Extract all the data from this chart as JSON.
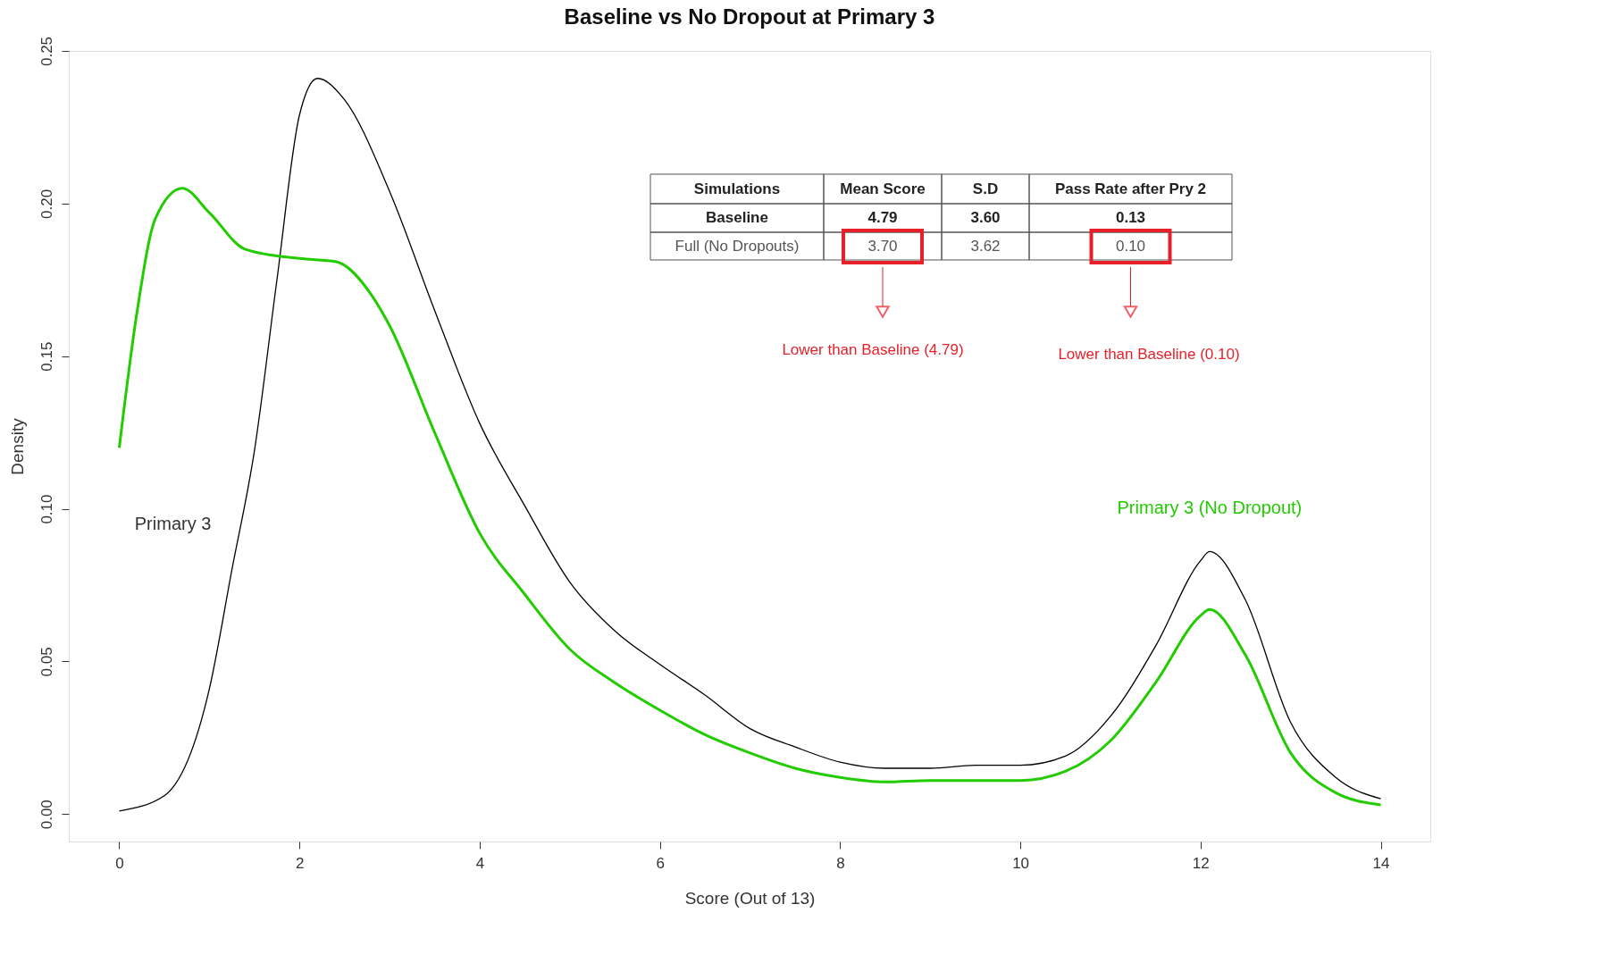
{
  "chart_data": {
    "type": "line",
    "title": "Baseline vs No Dropout at Primary 3",
    "xlabel": "Score (Out of 13)",
    "ylabel": "Density",
    "xlim": [
      -0.56,
      14.55
    ],
    "ylim": [
      -0.009,
      0.25
    ],
    "xticks": [
      0,
      2,
      4,
      6,
      8,
      10,
      12,
      14
    ],
    "yticks": [
      {
        "value": 0,
        "label": "0.00"
      },
      {
        "value": 0.05,
        "label": "0.05"
      },
      {
        "value": 0.1,
        "label": "0.10"
      },
      {
        "value": 0.15,
        "label": "0.15"
      },
      {
        "value": 0.2,
        "label": "0.20"
      },
      {
        "value": 0.25,
        "label": "0.25"
      }
    ],
    "grid": false,
    "marker": "none",
    "line_style": "solid",
    "series": [
      {
        "name": "Primary 3",
        "color": "#000000",
        "x": [
          0,
          0.5,
          1.0,
          1.25,
          1.5,
          1.75,
          2.0,
          2.2,
          2.5,
          3.0,
          3.5,
          4.0,
          4.5,
          5.0,
          5.5,
          6.0,
          6.5,
          7.0,
          7.5,
          8.0,
          8.5,
          9.0,
          9.5,
          10.0,
          10.5,
          11.0,
          11.5,
          12.0,
          12.1,
          12.5,
          13.0,
          13.5,
          14.0
        ],
        "values": [
          0.001,
          0.006,
          0.041,
          0.08,
          0.119,
          0.175,
          0.229,
          0.241,
          0.234,
          0.204,
          0.165,
          0.128,
          0.101,
          0.076,
          0.06,
          0.049,
          0.039,
          0.028,
          0.022,
          0.017,
          0.015,
          0.015,
          0.016,
          0.016,
          0.019,
          0.032,
          0.055,
          0.083,
          0.086,
          0.07,
          0.03,
          0.012,
          0.005
        ]
      },
      {
        "name": "Primary 3 (No Dropout)",
        "color": "#22cc00",
        "x": [
          0,
          0.2,
          0.4,
          0.7,
          1.0,
          1.4,
          2.0,
          2.4,
          2.8,
          3.0,
          3.5,
          4.0,
          4.5,
          5.0,
          5.5,
          6.0,
          6.5,
          7.0,
          7.5,
          8.0,
          8.5,
          9.0,
          9.5,
          10.0,
          10.5,
          11.0,
          11.5,
          12.0,
          12.1,
          12.5,
          13.0,
          13.5,
          14.0
        ],
        "values": [
          0.12,
          0.165,
          0.195,
          0.205,
          0.197,
          0.185,
          0.182,
          0.181,
          0.17,
          0.16,
          0.125,
          0.092,
          0.072,
          0.054,
          0.043,
          0.034,
          0.026,
          0.02,
          0.015,
          0.012,
          0.0105,
          0.011,
          0.011,
          0.011,
          0.014,
          0.024,
          0.043,
          0.065,
          0.067,
          0.052,
          0.02,
          0.007,
          0.003
        ]
      }
    ],
    "annotations": [
      "Simulations",
      "Mean Score",
      "S.D",
      "Pass Rate after Pry 2",
      "Baseline",
      "4.79",
      "3.60",
      "0.13",
      "Full (No Dropouts)",
      "3.70",
      "3.62",
      "0.10",
      "Lower than Baseline (4.79)",
      "Lower than Baseline (0.10)"
    ]
  }
}
